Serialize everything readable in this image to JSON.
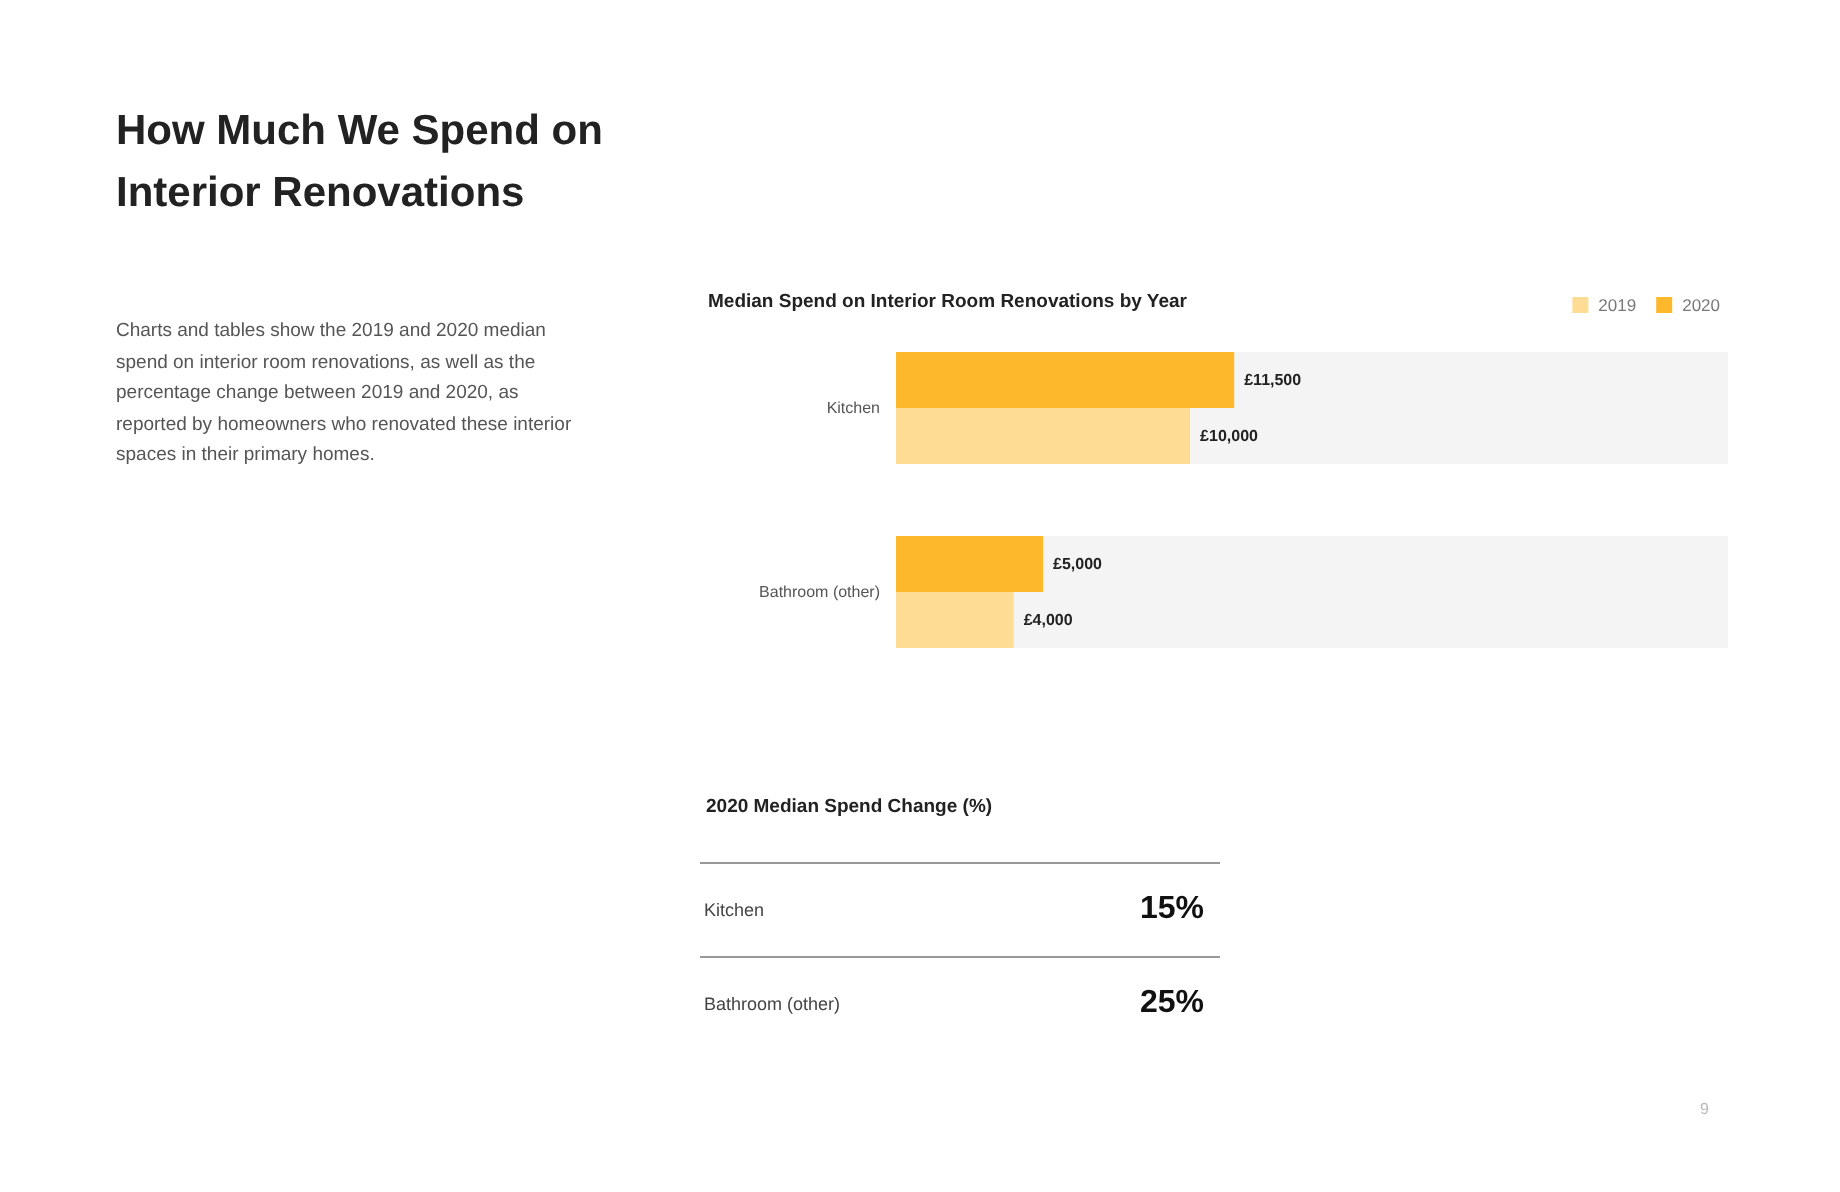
{
  "chart_data": [
    {
      "type": "other",
      "title": "How Much We Spend on Interior Renovations",
      "annotations": [
        "Charts and tables show the 2019 and 2020 median spend on interior room renovations, as well as the percentage change between 2019 and 2020, as reported by homeowners who renovated these interior spaces in their primary homes.",
        "9"
      ]
    },
    {
      "type": "bar",
      "orientation": "horizontal",
      "title": "Median Spend on Interior Room Renovations by Year",
      "categories": [
        "Kitchen",
        "Bathroom (other)"
      ],
      "legend": "top right",
      "series": [
        {
          "name": "2020",
          "color": "#fdb92b",
          "values": [
            11500,
            5000
          ],
          "value_labels": [
            "£11,500",
            "£5,000"
          ]
        },
        {
          "name": "2019",
          "color": "#fedc94",
          "values": [
            10000,
            4000
          ],
          "value_labels": [
            "£10,000",
            "£4,000"
          ]
        }
      ]
    },
    {
      "type": "other",
      "title": "2020 Median Spend Change (%)",
      "categories": [
        "Kitchen",
        "Bathroom (other)"
      ],
      "value_labels": [
        "15%",
        "25%"
      ]
    }
  ]
}
